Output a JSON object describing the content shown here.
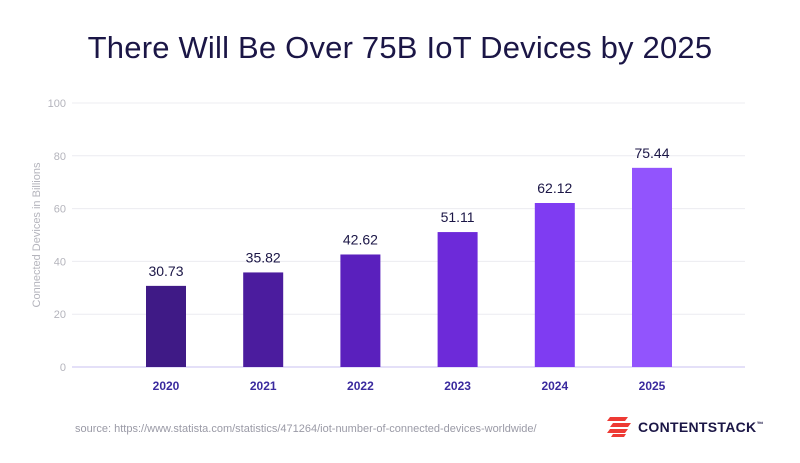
{
  "chart_data": {
    "type": "bar",
    "title": "There Will Be Over 75B IoT Devices by 2025",
    "ylabel": "Connected Devices in Billions",
    "xlabel": "",
    "categories": [
      "2020",
      "2021",
      "2022",
      "2023",
      "2024",
      "2025"
    ],
    "values": [
      30.73,
      35.82,
      42.62,
      51.11,
      62.12,
      75.44
    ],
    "value_labels": [
      "30.73",
      "35.82",
      "42.62",
      "51.11",
      "62.12",
      "75.44"
    ],
    "ylim": [
      0,
      100
    ],
    "yticks": [
      0,
      20,
      40,
      60,
      80,
      100
    ],
    "ytick_labels": [
      "0",
      "20",
      "40",
      "60",
      "80",
      "100"
    ],
    "grid": true,
    "bar_colors": [
      "#3f1a86",
      "#4b1c9e",
      "#5a20bd",
      "#6d2ad9",
      "#7f3cf2",
      "#9254fd"
    ],
    "category_label_color": "#3a2a9e"
  },
  "footer": {
    "source": "source: https://www.statista.com/statistics/471264/iot-number-of-connected-devices-worldwide/",
    "brand": "CONTENTSTACK",
    "trademark": "™",
    "brand_icon": "contentstack-logo-icon",
    "brand_color": "#ee3a34"
  }
}
